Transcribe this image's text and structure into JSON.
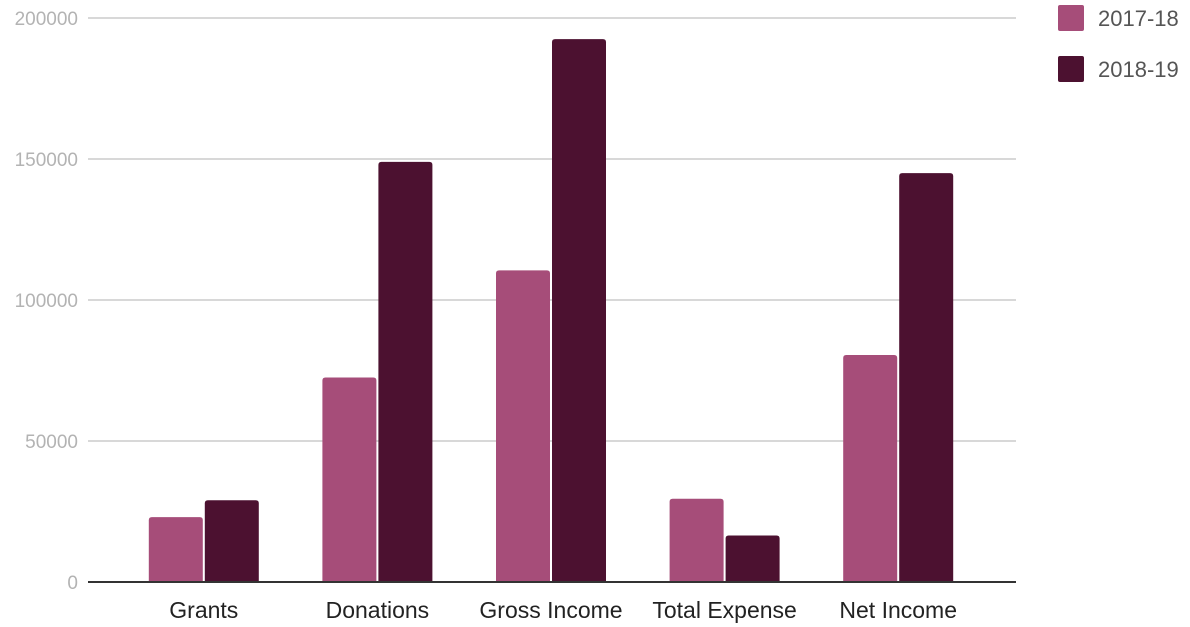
{
  "chart_data": {
    "type": "bar",
    "title": "",
    "xlabel": "",
    "ylabel": "",
    "categories": [
      "Grants",
      "Donations",
      "Gross Income",
      "Total Expense",
      "Net Income"
    ],
    "series": [
      {
        "name": "2017-18",
        "color": "#a64d79",
        "values": [
          23000,
          72500,
          110500,
          29500,
          80500
        ]
      },
      {
        "name": "2018-19",
        "color": "#4c1130",
        "values": [
          29000,
          149000,
          192500,
          16500,
          145000
        ]
      }
    ],
    "ylim": [
      0,
      200000
    ],
    "yticks": [
      0,
      50000,
      100000,
      150000,
      200000
    ],
    "ytick_labels": [
      "0",
      "50000",
      "100000",
      "150000",
      "200000"
    ],
    "grid": true,
    "legend_position": "top-right",
    "colors": {
      "gridline": "#cccccc",
      "axis": "#333333",
      "tick_text": "#b3b3b3",
      "category_text": "#222222",
      "legend_text": "#555555"
    }
  }
}
